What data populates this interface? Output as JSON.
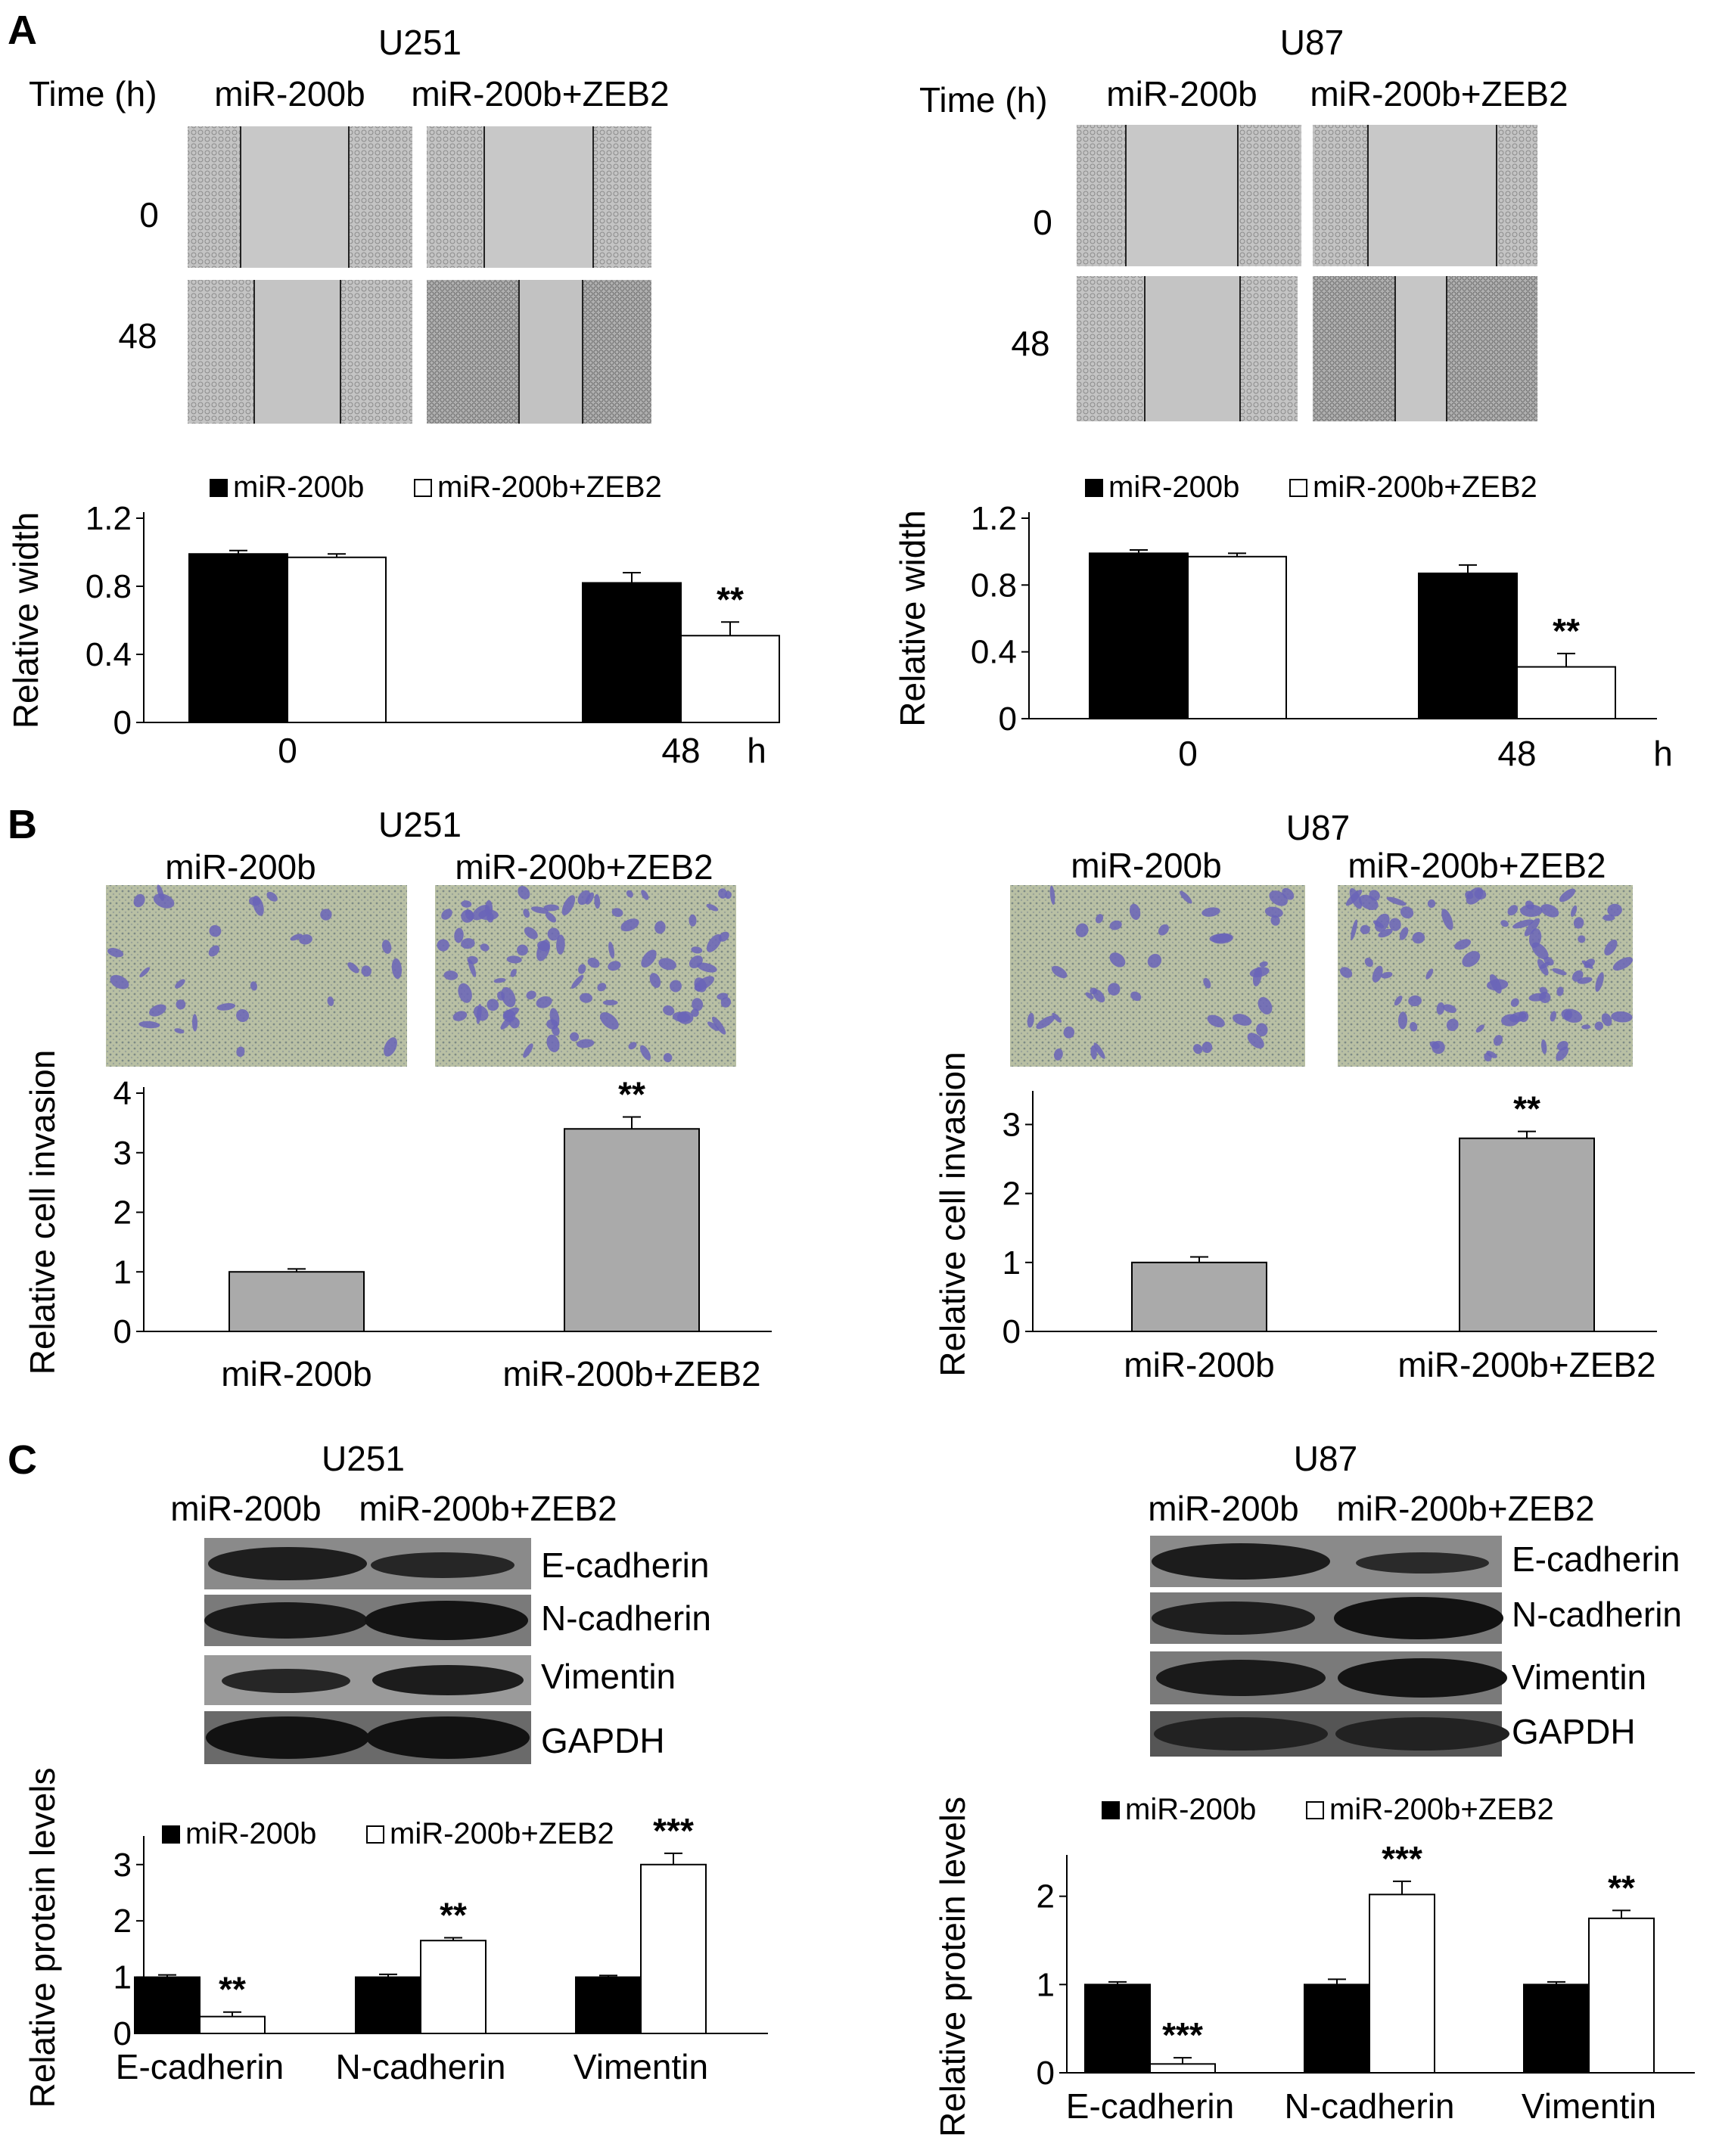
{
  "panels": {
    "A": {
      "letter": "A",
      "U251": {
        "cell_line": "U251",
        "time_label": "Time (h)",
        "group1": "miR-200b",
        "group2": "miR-200b+ZEB2",
        "rows": [
          "0",
          "48"
        ]
      },
      "U87": {
        "cell_line": "U87",
        "time_label": "Time (h)",
        "group1": "miR-200b",
        "group2": "miR-200b+ZEB2",
        "rows": [
          "0",
          "48"
        ]
      }
    },
    "B": {
      "letter": "B",
      "U251": {
        "cell_line": "U251",
        "group1": "miR-200b",
        "group2": "miR-200b+ZEB2"
      },
      "U87": {
        "cell_line": "U87",
        "group1": "miR-200b",
        "group2": "miR-200b+ZEB2"
      }
    },
    "C": {
      "letter": "C",
      "U251": {
        "cell_line": "U251",
        "group1": "miR-200b",
        "group2": "miR-200b+ZEB2",
        "bands": [
          "E-cadherin",
          "N-cadherin",
          "Vimentin",
          "GAPDH"
        ]
      },
      "U87": {
        "cell_line": "U87",
        "group1": "miR-200b",
        "group2": "miR-200b+ZEB2",
        "bands": [
          "E-cadherin",
          "N-cadherin",
          "Vimentin",
          "GAPDH"
        ]
      }
    }
  },
  "colors": {
    "series1": "#000000",
    "series2": "#ffffff",
    "single": "#aaaaaa",
    "scratch_bg": "#c8c8c8",
    "transwell_bg": "#b4bca0",
    "stain": "#6a64b8",
    "blot_band": "#1e1e1e"
  },
  "chart_data": [
    {
      "id": "A_U251",
      "type": "bar",
      "ylabel": "Relative width",
      "x_unit": "h",
      "categories": [
        "0",
        "48"
      ],
      "yticks": [
        "0",
        "0.4",
        "0.8",
        "1.2"
      ],
      "ylim": [
        0,
        1.2
      ],
      "legend_placement": "top",
      "series": [
        {
          "name": "miR-200b",
          "values": [
            0.99,
            0.82
          ],
          "errors": [
            0.02,
            0.06
          ]
        },
        {
          "name": "miR-200b+ZEB2",
          "values": [
            0.97,
            0.51
          ],
          "errors": [
            0.02,
            0.08
          ]
        }
      ],
      "annotations": [
        {
          "category": 1,
          "series": 1,
          "text": "**"
        }
      ]
    },
    {
      "id": "A_U87",
      "type": "bar",
      "ylabel": "Relative width",
      "x_unit": "h",
      "categories": [
        "0",
        "48"
      ],
      "yticks": [
        "0",
        "0.4",
        "0.8",
        "1.2"
      ],
      "ylim": [
        0,
        1.2
      ],
      "legend_placement": "top",
      "series": [
        {
          "name": "miR-200b",
          "values": [
            0.99,
            0.87
          ],
          "errors": [
            0.02,
            0.05
          ]
        },
        {
          "name": "miR-200b+ZEB2",
          "values": [
            0.97,
            0.31
          ],
          "errors": [
            0.02,
            0.08
          ]
        }
      ],
      "annotations": [
        {
          "category": 1,
          "series": 1,
          "text": "**"
        }
      ]
    },
    {
      "id": "B_U251",
      "type": "bar",
      "ylabel": "Relative cell invasion",
      "categories": [
        "miR-200b",
        "miR-200b+ZEB2"
      ],
      "yticks": [
        "0",
        "1",
        "2",
        "3",
        "4"
      ],
      "ylim": [
        0,
        4
      ],
      "series": [
        {
          "values": [
            1.0,
            3.4
          ],
          "errors": [
            0.05,
            0.2
          ]
        }
      ],
      "annotations": [
        {
          "category": 1,
          "series": 0,
          "text": "**"
        }
      ]
    },
    {
      "id": "B_U87",
      "type": "bar",
      "ylabel": "Relative cell invasion",
      "categories": [
        "miR-200b",
        "miR-200b+ZEB2"
      ],
      "yticks": [
        "0",
        "1",
        "2",
        "3"
      ],
      "ylim": [
        0,
        3.4
      ],
      "series": [
        {
          "values": [
            1.0,
            2.8
          ],
          "errors": [
            0.08,
            0.1
          ]
        }
      ],
      "annotations": [
        {
          "category": 1,
          "series": 0,
          "text": "**"
        }
      ]
    },
    {
      "id": "C_U251",
      "type": "bar",
      "ylabel": "Relative protein levels",
      "categories": [
        "E-cadherin",
        "N-cadherin",
        "Vimentin"
      ],
      "yticks": [
        "0",
        "1",
        "2",
        "3"
      ],
      "ylim": [
        0,
        3.4
      ],
      "legend_placement": "top",
      "series": [
        {
          "name": "miR-200b",
          "values": [
            1.0,
            1.0,
            1.0
          ],
          "errors": [
            0.04,
            0.05,
            0.03
          ]
        },
        {
          "name": "miR-200b+ZEB2",
          "values": [
            0.3,
            1.65,
            3.0
          ],
          "errors": [
            0.08,
            0.05,
            0.2
          ]
        }
      ],
      "annotations": [
        {
          "category": 0,
          "series": 1,
          "text": "**"
        },
        {
          "category": 1,
          "series": 1,
          "text": "**"
        },
        {
          "category": 2,
          "series": 1,
          "text": "***"
        }
      ]
    },
    {
      "id": "C_U87",
      "type": "bar",
      "ylabel": "Relative protein levels",
      "categories": [
        "E-cadherin",
        "N-cadherin",
        "Vimentin"
      ],
      "yticks": [
        "0",
        "1",
        "2"
      ],
      "ylim": [
        0,
        2.4
      ],
      "legend_placement": "top",
      "series": [
        {
          "name": "miR-200b",
          "values": [
            1.0,
            1.0,
            1.0
          ],
          "errors": [
            0.03,
            0.06,
            0.03
          ]
        },
        {
          "name": "miR-200b+ZEB2",
          "values": [
            0.1,
            2.02,
            1.75
          ],
          "errors": [
            0.07,
            0.15,
            0.09
          ]
        }
      ],
      "annotations": [
        {
          "category": 0,
          "series": 1,
          "text": "***"
        },
        {
          "category": 1,
          "series": 1,
          "text": "***"
        },
        {
          "category": 2,
          "series": 1,
          "text": "**"
        }
      ]
    }
  ]
}
